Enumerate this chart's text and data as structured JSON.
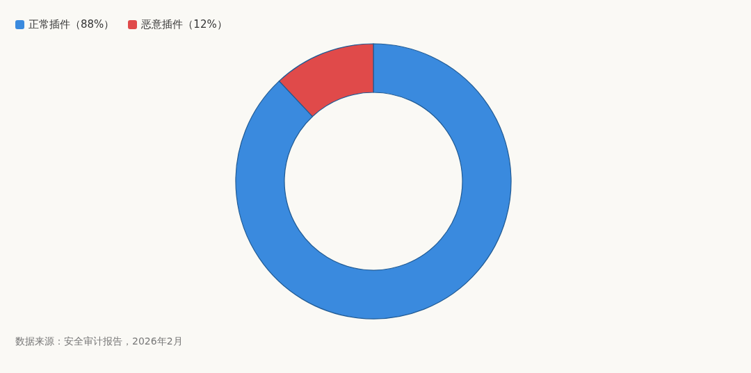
{
  "chart_data": {
    "type": "donut",
    "categories": [
      "正常插件（88%）",
      "恶意插件（12%）"
    ],
    "values": [
      88,
      12
    ],
    "colors": [
      "#3a8ade",
      "#e04a4a"
    ],
    "legend": "top left",
    "annotations": [
      "数据来源：安全审计报告，2026年2月"
    ]
  }
}
